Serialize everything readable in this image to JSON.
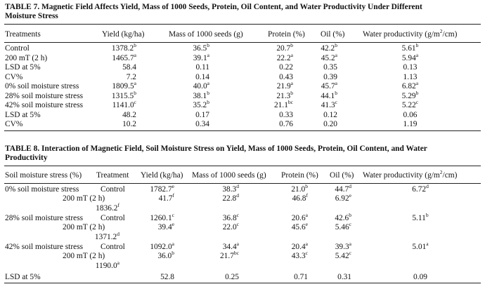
{
  "table7": {
    "caption": [
      "TABLE 7.  Magnetic Field Affects Yield, Mass of 1000 Seeds, Protein, Oil Content, and Water Productivity Under Different",
      "Moisture Stress"
    ],
    "headers": [
      "Treatments",
      "Yield (kg/ha)",
      "Mass of 1000 seeds (g)",
      "Protein (%)",
      "Oil (%)",
      "Water productivity (g/m²/cm)"
    ],
    "rows": [
      {
        "label": "Control",
        "cells": [
          [
            "1378.2",
            "b"
          ],
          [
            "36.5",
            "b"
          ],
          [
            "20.7",
            "b"
          ],
          [
            "42.2",
            "b"
          ],
          [
            "5.61",
            "b"
          ]
        ]
      },
      {
        "label": "200 mT (2 h)",
        "cells": [
          [
            "1465.7",
            "a"
          ],
          [
            "39.1",
            "a"
          ],
          [
            "22.2",
            "a"
          ],
          [
            "45.2",
            "a"
          ],
          [
            "5.94",
            "a"
          ]
        ]
      },
      {
        "label": "LSD at 5%",
        "cells": [
          [
            "58.4",
            ""
          ],
          [
            "0.11",
            ""
          ],
          [
            "0.22",
            ""
          ],
          [
            "0.35",
            ""
          ],
          [
            "0.13",
            ""
          ]
        ]
      },
      {
        "label": "CV%",
        "cells": [
          [
            "7.2",
            ""
          ],
          [
            "0.14",
            ""
          ],
          [
            "0.43",
            ""
          ],
          [
            "0.39",
            ""
          ],
          [
            "1.13",
            ""
          ]
        ]
      },
      {
        "label": "0% soil moisture stress",
        "cells": [
          [
            "1809.5",
            "a"
          ],
          [
            "40.0",
            "a"
          ],
          [
            "21.9",
            "a"
          ],
          [
            "45.7",
            "a"
          ],
          [
            "6.82",
            "a"
          ]
        ]
      },
      {
        "label": "28% soil moisture stress",
        "cells": [
          [
            "1315.5",
            "b"
          ],
          [
            "38.1",
            "b"
          ],
          [
            "21.3",
            "b"
          ],
          [
            "44.1",
            "b"
          ],
          [
            "5.29",
            "b"
          ]
        ]
      },
      {
        "label": "42% soil moisture stress",
        "cells": [
          [
            "1141.0",
            "c"
          ],
          [
            "35.2",
            "b"
          ],
          [
            "21.1",
            "bc"
          ],
          [
            "41.3",
            "c"
          ],
          [
            "5.22",
            "c"
          ]
        ]
      },
      {
        "label": "LSD at 5%",
        "cells": [
          [
            "48.2",
            ""
          ],
          [
            "0.17",
            ""
          ],
          [
            "0.33",
            ""
          ],
          [
            "0.12",
            ""
          ],
          [
            "0.06",
            ""
          ]
        ]
      },
      {
        "label": "CV%",
        "cells": [
          [
            "10.2",
            ""
          ],
          [
            "0.34",
            ""
          ],
          [
            "0.76",
            ""
          ],
          [
            "0.20",
            ""
          ],
          [
            "1.19",
            ""
          ]
        ]
      }
    ]
  },
  "table8": {
    "caption": [
      "TABLE 8.  Interaction of Magnetic Field, Soil Moisture Stress on Yield, Mass of 1000 Seeds, Protein, Oil Content, and Water",
      "Productivity"
    ],
    "headers": [
      "Soil moisture stress (%)",
      "Treatment",
      "Yield (kg/ha)",
      "Mass of 1000 seeds (g)",
      "Protein (%)",
      "Oil (%)",
      "Water productivity (g/m²/cm)"
    ],
    "groups": [
      {
        "stress": "0% soil moisture stress",
        "line1": {
          "treatment": "Control",
          "yield": [
            "1782.7",
            "e"
          ],
          "mass": [
            "38.3",
            "d"
          ],
          "protein": [
            "21.0",
            "b"
          ],
          "oil": [
            "44.7",
            "d"
          ],
          "water": [
            "6.72",
            "d"
          ]
        },
        "line2": {
          "treatment": "200 mT (2 h)",
          "yield": [
            "41.7",
            "f"
          ],
          "mass": [
            "22.8",
            "d"
          ],
          "protein": [
            "46.8",
            "f"
          ],
          "oil": [
            "6.92",
            "e"
          ]
        },
        "extra": [
          "1836.2",
          "f"
        ]
      },
      {
        "stress": "28% soil moisture stress",
        "line1": {
          "treatment": "Control",
          "yield": [
            "1260.1",
            "c"
          ],
          "mass": [
            "36.8",
            "c"
          ],
          "protein": [
            "20.6",
            "a"
          ],
          "oil": [
            "42.6",
            "b"
          ],
          "water": [
            "5.11",
            "b"
          ]
        },
        "line2": {
          "treatment": "200 mT (2 h)",
          "yield": [
            "39.4",
            "e"
          ],
          "mass": [
            "22.0",
            "c"
          ],
          "protein": [
            "45.6",
            "e"
          ],
          "oil": [
            "5.46",
            "c"
          ]
        },
        "extra": [
          "1371.2",
          "d"
        ]
      },
      {
        "stress": "42% soil moisture stress",
        "line1": {
          "treatment": "Control",
          "yield": [
            "1092.0",
            "a"
          ],
          "mass": [
            "34.4",
            "a"
          ],
          "protein": [
            "20.4",
            "a"
          ],
          "oil": [
            "39.3",
            "a"
          ],
          "water": [
            "5.01",
            "a"
          ]
        },
        "line2": {
          "treatment": "200 mT (2 h)",
          "yield": [
            "36.0",
            "b"
          ],
          "mass": [
            "21.7",
            "bc"
          ],
          "protein": [
            "43.3",
            "c"
          ],
          "oil": [
            "5.42",
            "c"
          ]
        },
        "extra": [
          "1190.0",
          "a"
        ]
      }
    ],
    "lsd": {
      "label": "LSD at 5%",
      "values": [
        "52.8",
        "0.25",
        "0.71",
        "0.31",
        "0.09"
      ]
    }
  }
}
